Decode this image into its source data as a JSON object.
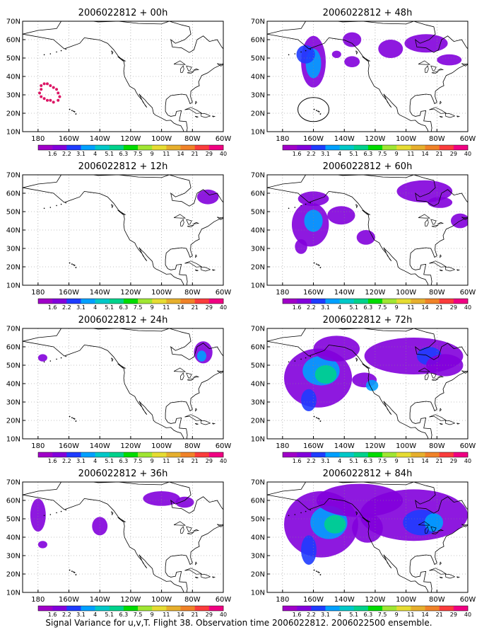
{
  "figure": {
    "caption": "Signal Variance for u,v,T. Flight 38. Observation time 2006022812. 2006022500 ensemble.",
    "lat_labels": [
      "10N",
      "20N",
      "30N",
      "40N",
      "50N",
      "60N",
      "70N"
    ],
    "lon_labels": [
      "180",
      "160W",
      "140W",
      "120W",
      "100W",
      "80W",
      "60W"
    ],
    "colorbar": {
      "labels": [
        "1.6",
        "2.2",
        "3.1",
        "4",
        "5.1",
        "6.3",
        "7.5",
        "9",
        "11",
        "14",
        "21",
        "29",
        "40"
      ],
      "colors": [
        "#a000c8",
        "#8200dc",
        "#1e3cff",
        "#00a0ff",
        "#00c8c8",
        "#00d28c",
        "#00dc00",
        "#a0e632",
        "#e6dc32",
        "#e6af2d",
        "#f08228",
        "#fa3c3c",
        "#f00082"
      ]
    },
    "panels": [
      {
        "title": "2006022812 + 00h"
      },
      {
        "title": "2006022812 + 48h"
      },
      {
        "title": "2006022812 + 12h"
      },
      {
        "title": "2006022812 + 60h"
      },
      {
        "title": "2006022812 + 24h"
      },
      {
        "title": "2006022812 + 72h"
      },
      {
        "title": "2006022812 + 36h"
      },
      {
        "title": "2006022812 + 84h"
      }
    ]
  }
}
